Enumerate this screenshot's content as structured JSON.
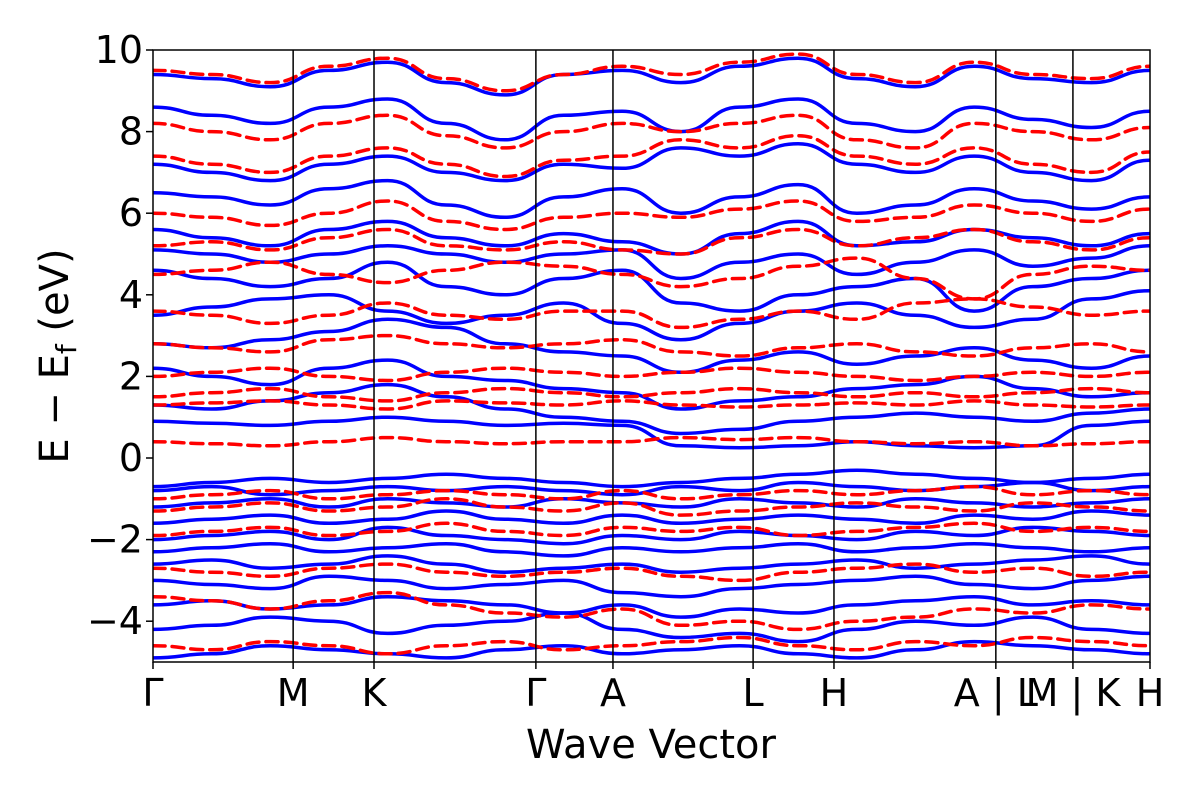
{
  "chart_data": {
    "type": "line",
    "title": "",
    "xlabel": "Wave Vector",
    "ylabel": "E − E_f (eV)",
    "ylabel_parts": {
      "main": "E − E",
      "sub": "f",
      "unit": " (eV)"
    },
    "ylim": [
      -5,
      10
    ],
    "y_ticks": [
      {
        "value": -4,
        "label": "−4"
      },
      {
        "value": -2,
        "label": "−2"
      },
      {
        "value": 0,
        "label": "0"
      },
      {
        "value": 2,
        "label": "2"
      },
      {
        "value": 4,
        "label": "4"
      },
      {
        "value": 6,
        "label": "6"
      },
      {
        "value": 8,
        "label": "8"
      },
      {
        "value": 10,
        "label": "10"
      }
    ],
    "kpath_ticks": [
      {
        "k": 0.0,
        "label": "Γ"
      },
      {
        "k": 1.0,
        "label": "M"
      },
      {
        "k": 1.577,
        "label": "K"
      },
      {
        "k": 2.732,
        "label": "Γ"
      },
      {
        "k": 3.282,
        "label": "A"
      },
      {
        "k": 4.282,
        "label": "L"
      },
      {
        "k": 4.859,
        "label": "H"
      },
      {
        "k": 6.014,
        "label": "A | L"
      },
      {
        "k": 6.564,
        "label": "M | K"
      },
      {
        "k": 7.114,
        "label": "H"
      }
    ],
    "xlim": [
      0.0,
      7.114
    ],
    "grid": false,
    "legend": "none",
    "colors": {
      "series_a": "#0000ff",
      "series_b": "#ff0000",
      "axes": "#000000"
    },
    "series": [
      {
        "style": "solid",
        "color": "#0000ff",
        "bands": [
          [
            -4.9,
            -4.8,
            -4.6,
            -4.7,
            -4.8,
            -4.9,
            -4.7,
            -4.6,
            -4.8,
            -4.7,
            -4.6,
            -4.8,
            -4.9,
            -4.7,
            -4.5,
            -4.6,
            -4.7,
            -4.8
          ],
          [
            -4.2,
            -4.1,
            -3.9,
            -4.0,
            -4.3,
            -4.1,
            -4.0,
            -3.8,
            -4.2,
            -4.4,
            -4.3,
            -4.5,
            -4.2,
            -4.0,
            -4.1,
            -3.9,
            -4.2,
            -4.3
          ],
          [
            -3.6,
            -3.5,
            -3.7,
            -3.6,
            -3.4,
            -3.5,
            -3.6,
            -3.8,
            -3.6,
            -3.9,
            -3.7,
            -3.8,
            -3.6,
            -3.5,
            -3.4,
            -3.6,
            -3.5,
            -3.6
          ],
          [
            -3.0,
            -3.1,
            -3.2,
            -2.9,
            -3.0,
            -3.2,
            -3.1,
            -3.0,
            -3.3,
            -3.4,
            -3.2,
            -3.1,
            -3.0,
            -2.9,
            -3.1,
            -3.2,
            -3.0,
            -2.9
          ],
          [
            -2.6,
            -2.5,
            -2.7,
            -2.6,
            -2.4,
            -2.6,
            -2.8,
            -2.7,
            -2.6,
            -2.8,
            -2.7,
            -2.6,
            -2.5,
            -2.7,
            -2.6,
            -2.5,
            -2.4,
            -2.6
          ],
          [
            -2.3,
            -2.2,
            -2.1,
            -2.3,
            -2.2,
            -2.1,
            -2.3,
            -2.4,
            -2.2,
            -2.3,
            -2.2,
            -2.1,
            -2.3,
            -2.2,
            -2.1,
            -2.2,
            -2.3,
            -2.2
          ],
          [
            -2.0,
            -1.9,
            -1.8,
            -2.0,
            -1.7,
            -1.9,
            -2.0,
            -2.1,
            -1.9,
            -2.0,
            -1.8,
            -1.9,
            -2.0,
            -1.8,
            -1.9,
            -1.7,
            -1.8,
            -1.9
          ],
          [
            -1.6,
            -1.5,
            -1.4,
            -1.6,
            -1.5,
            -1.3,
            -1.5,
            -1.6,
            -1.4,
            -1.6,
            -1.5,
            -1.4,
            -1.5,
            -1.6,
            -1.4,
            -1.5,
            -1.3,
            -1.4
          ],
          [
            -1.2,
            -1.1,
            -1.0,
            -1.2,
            -1.0,
            -1.1,
            -1.2,
            -1.0,
            -1.1,
            -1.2,
            -1.0,
            -1.1,
            -1.2,
            -1.0,
            -1.1,
            -1.2,
            -1.1,
            -1.0
          ],
          [
            -0.8,
            -0.7,
            -0.9,
            -0.8,
            -0.7,
            -0.8,
            -0.7,
            -0.8,
            -0.9,
            -0.7,
            -0.8,
            -0.6,
            -0.7,
            -0.8,
            -0.7,
            -0.6,
            -0.8,
            -0.7
          ],
          [
            -0.7,
            -0.6,
            -0.5,
            -0.6,
            -0.5,
            -0.4,
            -0.5,
            -0.6,
            -0.7,
            -0.6,
            -0.5,
            -0.4,
            -0.3,
            -0.4,
            -0.5,
            -0.6,
            -0.5,
            -0.4
          ],
          [
            0.9,
            0.85,
            0.8,
            0.9,
            1.0,
            0.9,
            0.8,
            0.85,
            0.8,
            0.3,
            0.25,
            0.3,
            0.4,
            0.3,
            0.25,
            0.3,
            0.8,
            0.9
          ],
          [
            1.3,
            1.2,
            1.4,
            1.6,
            1.8,
            1.5,
            1.2,
            1.0,
            0.9,
            0.6,
            0.7,
            0.9,
            1.0,
            1.1,
            1.0,
            0.9,
            1.1,
            1.2
          ],
          [
            2.2,
            2.0,
            1.8,
            2.2,
            2.4,
            2.0,
            1.9,
            1.7,
            1.6,
            1.2,
            1.4,
            1.5,
            1.7,
            1.8,
            2.0,
            1.7,
            1.5,
            1.6
          ],
          [
            2.8,
            2.7,
            2.9,
            3.1,
            3.4,
            3.2,
            2.8,
            2.6,
            2.5,
            2.1,
            2.4,
            2.6,
            2.3,
            2.5,
            2.7,
            2.4,
            2.2,
            2.5
          ],
          [
            3.5,
            3.7,
            3.9,
            4.0,
            3.6,
            3.3,
            3.5,
            3.8,
            3.3,
            2.9,
            3.3,
            3.6,
            3.8,
            3.5,
            3.2,
            3.4,
            3.9,
            4.1
          ],
          [
            4.6,
            4.4,
            4.2,
            4.4,
            4.8,
            4.2,
            4.0,
            4.4,
            4.6,
            3.8,
            3.6,
            4.0,
            4.2,
            4.4,
            3.6,
            4.2,
            4.4,
            4.6
          ],
          [
            5.1,
            5.0,
            4.8,
            5.0,
            5.2,
            5.0,
            4.8,
            5.0,
            5.1,
            4.4,
            4.8,
            5.0,
            4.5,
            4.8,
            5.1,
            4.7,
            4.9,
            5.2
          ],
          [
            5.6,
            5.4,
            5.2,
            5.6,
            5.8,
            5.4,
            5.2,
            5.5,
            5.3,
            5.0,
            5.5,
            5.8,
            5.2,
            5.3,
            5.6,
            5.4,
            5.2,
            5.5
          ],
          [
            6.5,
            6.4,
            6.2,
            6.6,
            6.8,
            6.2,
            5.9,
            6.4,
            6.6,
            6.0,
            6.4,
            6.7,
            6.0,
            6.2,
            6.6,
            6.3,
            6.1,
            6.4
          ],
          [
            7.2,
            7.0,
            6.8,
            7.2,
            7.4,
            7.0,
            6.8,
            7.2,
            7.1,
            7.6,
            7.4,
            7.7,
            7.2,
            7.0,
            7.4,
            7.0,
            6.8,
            7.3
          ],
          [
            8.6,
            8.4,
            8.2,
            8.6,
            8.8,
            8.2,
            7.8,
            8.4,
            8.5,
            8.0,
            8.6,
            8.8,
            8.2,
            8.0,
            8.6,
            8.3,
            8.1,
            8.5
          ],
          [
            9.4,
            9.3,
            9.1,
            9.5,
            9.7,
            9.2,
            8.9,
            9.4,
            9.5,
            9.2,
            9.6,
            9.8,
            9.3,
            9.1,
            9.6,
            9.3,
            9.2,
            9.5
          ]
        ]
      },
      {
        "style": "dashed",
        "color": "#ff0000",
        "bands": [
          [
            -4.6,
            -4.7,
            -4.5,
            -4.6,
            -4.8,
            -4.6,
            -4.5,
            -4.7,
            -4.6,
            -4.5,
            -4.4,
            -4.6,
            -4.7,
            -4.5,
            -4.6,
            -4.4,
            -4.5,
            -4.6
          ],
          [
            -3.4,
            -3.5,
            -3.7,
            -3.5,
            -3.3,
            -3.6,
            -3.8,
            -3.9,
            -3.7,
            -4.1,
            -4.0,
            -4.2,
            -4.0,
            -3.9,
            -3.7,
            -3.8,
            -3.6,
            -3.7
          ],
          [
            -2.7,
            -2.8,
            -2.9,
            -2.7,
            -2.6,
            -2.8,
            -2.9,
            -2.8,
            -2.7,
            -2.9,
            -3.0,
            -2.8,
            -2.7,
            -2.6,
            -2.8,
            -2.7,
            -2.9,
            -2.8
          ],
          [
            -1.9,
            -1.8,
            -1.7,
            -1.9,
            -1.8,
            -1.6,
            -1.8,
            -1.9,
            -1.7,
            -1.8,
            -1.7,
            -1.9,
            -1.8,
            -1.7,
            -1.6,
            -1.8,
            -1.7,
            -1.8
          ],
          [
            -1.3,
            -1.2,
            -1.1,
            -1.3,
            -1.2,
            -1.0,
            -1.2,
            -1.3,
            -1.1,
            -1.4,
            -1.3,
            -1.2,
            -1.1,
            -1.2,
            -1.3,
            -1.1,
            -1.2,
            -1.3
          ],
          [
            -1.0,
            -0.9,
            -0.8,
            -1.0,
            -0.9,
            -0.8,
            -0.9,
            -1.0,
            -0.8,
            -1.0,
            -0.9,
            -0.8,
            -0.9,
            -0.8,
            -0.7,
            -0.9,
            -0.8,
            -0.9
          ],
          [
            0.4,
            0.35,
            0.3,
            0.4,
            0.5,
            0.4,
            0.35,
            0.4,
            0.4,
            0.5,
            0.45,
            0.5,
            0.4,
            0.35,
            0.4,
            0.3,
            0.35,
            0.4
          ],
          [
            1.3,
            1.35,
            1.4,
            1.3,
            1.2,
            1.4,
            1.35,
            1.3,
            1.4,
            1.3,
            1.25,
            1.3,
            1.35,
            1.3,
            1.4,
            1.3,
            1.25,
            1.3
          ],
          [
            1.5,
            1.6,
            1.7,
            1.5,
            1.4,
            1.6,
            1.7,
            1.6,
            1.5,
            1.6,
            1.7,
            1.6,
            1.5,
            1.6,
            1.5,
            1.6,
            1.7,
            1.6
          ],
          [
            2.0,
            2.1,
            2.2,
            2.0,
            1.9,
            2.1,
            2.2,
            2.1,
            2.0,
            2.1,
            2.2,
            2.1,
            2.0,
            1.9,
            2.0,
            2.1,
            2.0,
            2.1
          ],
          [
            2.8,
            2.7,
            2.6,
            2.9,
            3.0,
            2.8,
            2.7,
            2.8,
            2.9,
            2.6,
            2.5,
            2.7,
            2.8,
            2.6,
            2.5,
            2.7,
            2.8,
            2.6
          ],
          [
            3.6,
            3.5,
            3.3,
            3.5,
            3.8,
            3.5,
            3.4,
            3.6,
            3.6,
            3.2,
            3.4,
            3.6,
            3.4,
            3.8,
            3.9,
            3.7,
            3.5,
            3.6
          ],
          [
            4.5,
            4.6,
            4.8,
            4.5,
            4.3,
            4.6,
            4.8,
            4.7,
            4.5,
            4.2,
            4.4,
            4.7,
            4.9,
            4.4,
            3.9,
            4.5,
            4.7,
            4.6
          ],
          [
            5.2,
            5.3,
            5.1,
            5.4,
            5.6,
            5.2,
            5.1,
            5.3,
            5.1,
            5.0,
            5.4,
            5.6,
            5.2,
            5.4,
            5.6,
            5.3,
            5.1,
            5.4
          ],
          [
            6.0,
            5.9,
            5.7,
            6.0,
            6.3,
            5.8,
            5.6,
            5.9,
            6.0,
            5.9,
            6.1,
            6.3,
            5.8,
            5.9,
            6.2,
            6.0,
            5.8,
            6.1
          ],
          [
            7.4,
            7.2,
            7.0,
            7.4,
            7.6,
            7.2,
            6.9,
            7.3,
            7.4,
            7.8,
            7.6,
            7.9,
            7.4,
            7.2,
            7.6,
            7.2,
            7.0,
            7.5
          ],
          [
            8.2,
            8.0,
            7.8,
            8.2,
            8.4,
            7.9,
            7.6,
            8.0,
            8.2,
            8.0,
            8.2,
            8.4,
            7.8,
            7.6,
            8.2,
            8.0,
            7.8,
            8.1
          ],
          [
            9.5,
            9.4,
            9.2,
            9.6,
            9.8,
            9.3,
            9.0,
            9.4,
            9.6,
            9.4,
            9.7,
            9.9,
            9.4,
            9.2,
            9.7,
            9.4,
            9.3,
            9.6
          ]
        ]
      }
    ]
  }
}
